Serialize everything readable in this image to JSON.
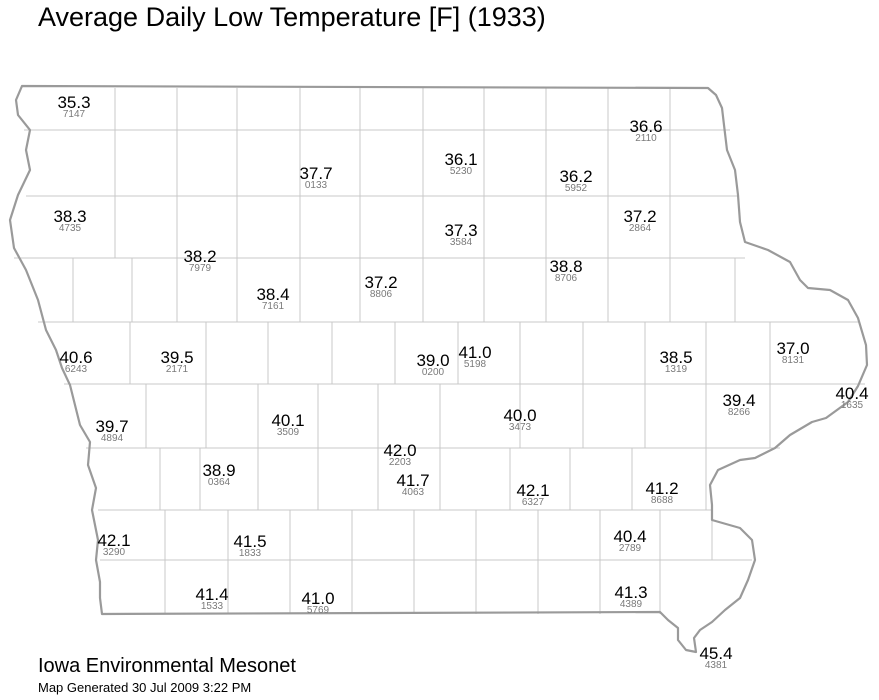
{
  "title": "Average Daily Low Temperature [F] (1933)",
  "credit": {
    "name": "Iowa Environmental Mesonet",
    "generated": "Map Generated 30 Jul 2009 3:22 PM"
  },
  "colors": {
    "border": "#9a9a9a",
    "value_text": "#000000",
    "id_text": "#7a7a7a"
  },
  "stations": [
    {
      "value": "35.3",
      "id": "7147"
    },
    {
      "value": "36.6",
      "id": "2110"
    },
    {
      "value": "37.7",
      "id": "0133"
    },
    {
      "value": "36.1",
      "id": "5230"
    },
    {
      "value": "36.2",
      "id": "5952"
    },
    {
      "value": "38.3",
      "id": "4735"
    },
    {
      "value": "37.3",
      "id": "3584"
    },
    {
      "value": "37.2",
      "id": "2864"
    },
    {
      "value": "38.2",
      "id": "7979"
    },
    {
      "value": "38.4",
      "id": "7161"
    },
    {
      "value": "37.2",
      "id": "8806"
    },
    {
      "value": "38.8",
      "id": "8706"
    },
    {
      "value": "40.6",
      "id": "6243"
    },
    {
      "value": "39.5",
      "id": "2171"
    },
    {
      "value": "39.0",
      "id": "0200"
    },
    {
      "value": "41.0",
      "id": "5198"
    },
    {
      "value": "38.5",
      "id": "1319"
    },
    {
      "value": "37.0",
      "id": "8131"
    },
    {
      "value": "39.7",
      "id": "4894"
    },
    {
      "value": "40.1",
      "id": "3509"
    },
    {
      "value": "40.0",
      "id": "3473"
    },
    {
      "value": "39.4",
      "id": "8266"
    },
    {
      "value": "40.4",
      "id": "1635"
    },
    {
      "value": "42.0",
      "id": "2203"
    },
    {
      "value": "38.9",
      "id": "0364"
    },
    {
      "value": "41.7",
      "id": "4063"
    },
    {
      "value": "42.1",
      "id": "6327"
    },
    {
      "value": "41.2",
      "id": "8688"
    },
    {
      "value": "42.1",
      "id": "3290"
    },
    {
      "value": "41.5",
      "id": "1833"
    },
    {
      "value": "40.4",
      "id": "2789"
    },
    {
      "value": "41.4",
      "id": "1533"
    },
    {
      "value": "41.0",
      "id": "5769"
    },
    {
      "value": "41.3",
      "id": "4389"
    },
    {
      "value": "45.4",
      "id": "4381"
    }
  ]
}
